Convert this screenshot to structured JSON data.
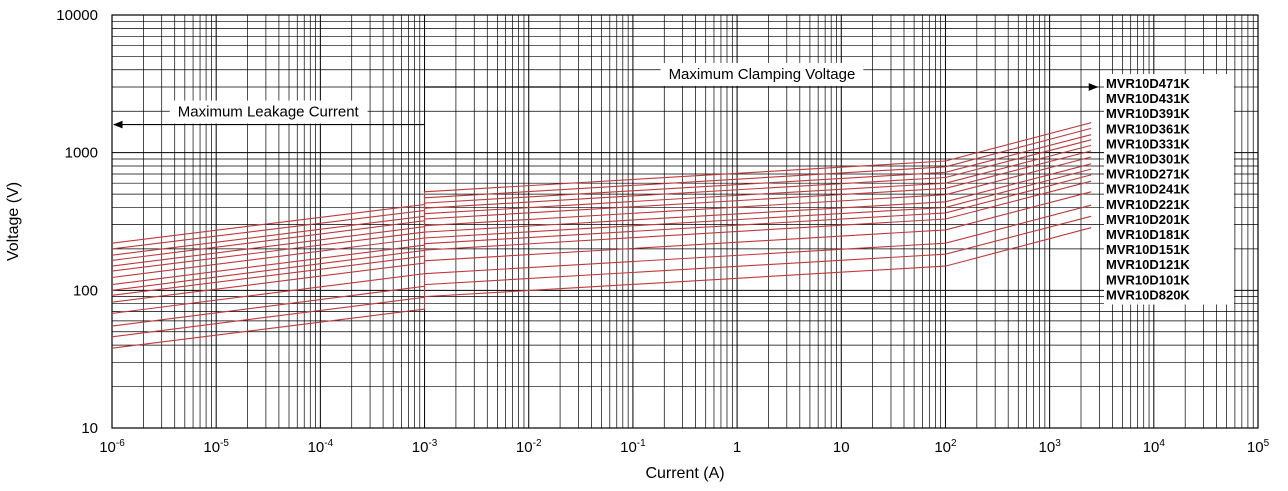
{
  "chart_data": {
    "type": "line",
    "xlabel": "Current (A)",
    "ylabel": "Voltage (V)",
    "x_scale": "log",
    "y_scale": "log",
    "xlim": [
      1e-06,
      100000.0
    ],
    "ylim": [
      10,
      10000
    ],
    "grid": true,
    "x_ticks": [
      {
        "base": "10",
        "exp": "-6"
      },
      {
        "base": "10",
        "exp": "-5"
      },
      {
        "base": "10",
        "exp": "-4"
      },
      {
        "base": "10",
        "exp": "-3"
      },
      {
        "base": "10",
        "exp": "-2"
      },
      {
        "base": "10",
        "exp": "-1"
      },
      {
        "base": "1",
        "exp": ""
      },
      {
        "base": "10",
        "exp": ""
      },
      {
        "base": "10",
        "exp": "2"
      },
      {
        "base": "10",
        "exp": "3"
      },
      {
        "base": "10",
        "exp": "4"
      },
      {
        "base": "10",
        "exp": "5"
      }
    ],
    "y_ticks": [
      "10",
      "100",
      "1000",
      "10000"
    ],
    "annotations": [
      {
        "text": "Maximum Leakage Current",
        "direction": "left",
        "x_from": 0.001,
        "x_to": 1e-06,
        "y": 1600
      },
      {
        "text": "Maximum Clamping Voltage",
        "direction": "right",
        "x_from": 0.001,
        "x_to": 3000,
        "y": 3000
      }
    ],
    "series_color": "#c0393b",
    "series": [
      {
        "name": "MVR10D471K",
        "x": [
          1e-06,
          0.001,
          0.001,
          100,
          2500
        ],
        "y": [
          220,
          420,
          520,
          870,
          1650
        ]
      },
      {
        "name": "MVR10D431K",
        "x": [
          1e-06,
          0.001,
          0.001,
          100,
          2500
        ],
        "y": [
          200,
          380,
          470,
          790,
          1500
        ]
      },
      {
        "name": "MVR10D391K",
        "x": [
          1e-06,
          0.001,
          0.001,
          100,
          2500
        ],
        "y": [
          180,
          345,
          430,
          720,
          1350
        ]
      },
      {
        "name": "MVR10D361K",
        "x": [
          1e-06,
          0.001,
          0.001,
          100,
          2500
        ],
        "y": [
          165,
          320,
          395,
          660,
          1240
        ]
      },
      {
        "name": "MVR10D331K",
        "x": [
          1e-06,
          0.001,
          0.001,
          100,
          2500
        ],
        "y": [
          150,
          290,
          360,
          600,
          1130
        ]
      },
      {
        "name": "MVR10D301K",
        "x": [
          1e-06,
          0.001,
          0.001,
          100,
          2500
        ],
        "y": [
          138,
          265,
          330,
          550,
          1030
        ]
      },
      {
        "name": "MVR10D271K",
        "x": [
          1e-06,
          0.001,
          0.001,
          100,
          2500
        ],
        "y": [
          124,
          240,
          295,
          495,
          930
        ]
      },
      {
        "name": "MVR10D241K",
        "x": [
          1e-06,
          0.001,
          0.001,
          100,
          2500
        ],
        "y": [
          110,
          213,
          265,
          440,
          830
        ]
      },
      {
        "name": "MVR10D221K",
        "x": [
          1e-06,
          0.001,
          0.001,
          100,
          2500
        ],
        "y": [
          100,
          195,
          240,
          400,
          760
        ]
      },
      {
        "name": "MVR10D201K",
        "x": [
          1e-06,
          0.001,
          0.001,
          100,
          2500
        ],
        "y": [
          92,
          177,
          218,
          365,
          690
        ]
      },
      {
        "name": "MVR10D181K",
        "x": [
          1e-06,
          0.001,
          0.001,
          100,
          2500
        ],
        "y": [
          82,
          158,
          196,
          330,
          620
        ]
      },
      {
        "name": "MVR10D151K",
        "x": [
          1e-06,
          0.001,
          0.001,
          100,
          2500
        ],
        "y": [
          68,
          132,
          164,
          275,
          520
        ]
      },
      {
        "name": "MVR10D121K",
        "x": [
          1e-06,
          0.001,
          0.001,
          100,
          2500
        ],
        "y": [
          55,
          107,
          132,
          220,
          415
        ]
      },
      {
        "name": "MVR10D101K",
        "x": [
          1e-06,
          0.001,
          0.001,
          100,
          2500
        ],
        "y": [
          46,
          89,
          110,
          183,
          345
        ]
      },
      {
        "name": "MVR10D820K",
        "x": [
          1e-06,
          0.001,
          0.001,
          100,
          2500
        ],
        "y": [
          38,
          73,
          90,
          150,
          285
        ]
      }
    ]
  }
}
